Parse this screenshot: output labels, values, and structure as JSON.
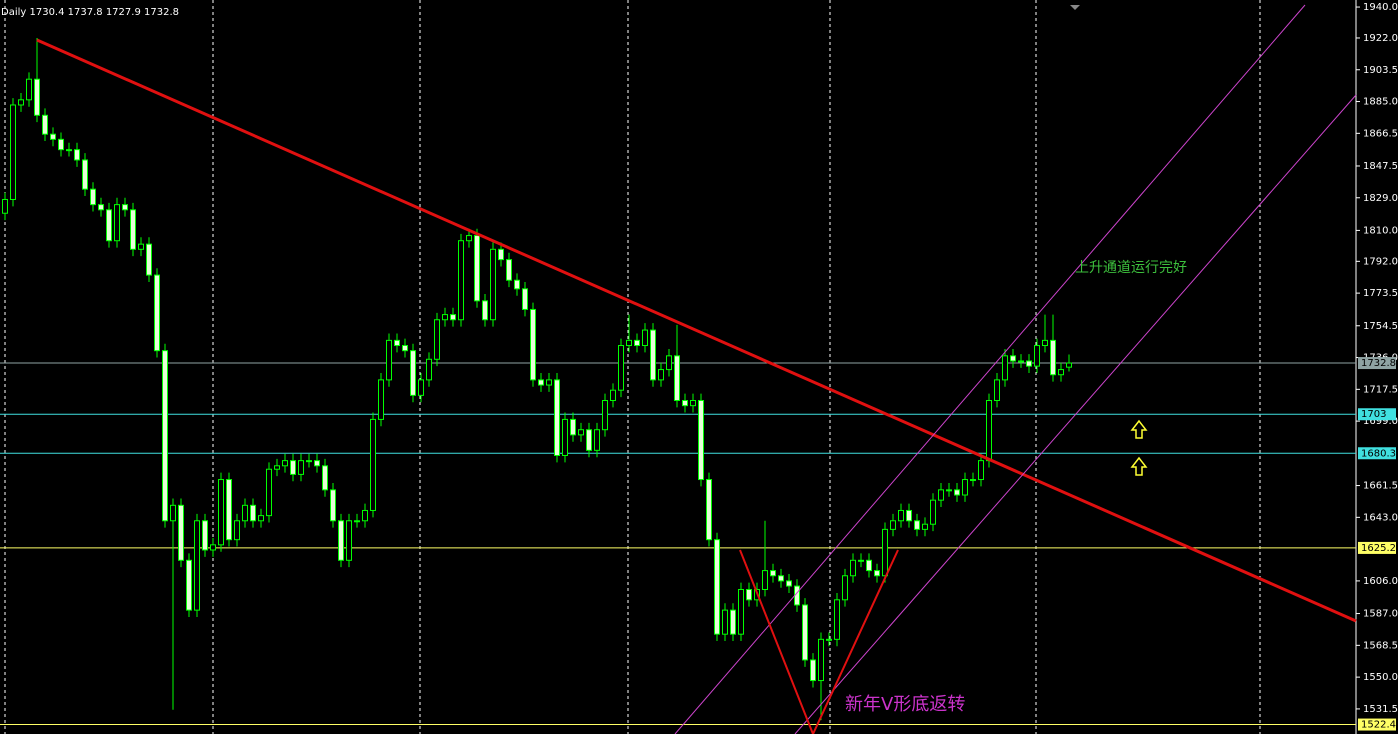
{
  "chart_data": {
    "type": "candlestick",
    "header": "Daily  1730.4 1737.8 1727.9 1732.8",
    "annotations": [
      "上升通道运行完好",
      "新年V形底返转"
    ],
    "up_color": "#000000",
    "down_color": "#e6ffd8",
    "wick_color": "#00ff00",
    "ylim": [
      1516.9,
      1944.1
    ],
    "yticks": [
      {
        "value": 1940,
        "label": "1940.0"
      },
      {
        "value": 1922,
        "label": "1922.0"
      },
      {
        "value": 1903.5,
        "label": "1903.5"
      },
      {
        "value": 1885,
        "label": "1885.0"
      },
      {
        "value": 1866.5,
        "label": "1866.5"
      },
      {
        "value": 1847.5,
        "label": "1847.5"
      },
      {
        "value": 1829,
        "label": "1829.0"
      },
      {
        "value": 1810,
        "label": "1810.0"
      },
      {
        "value": 1792,
        "label": "1792.0"
      },
      {
        "value": 1773.5,
        "label": "1773.5"
      },
      {
        "value": 1754.5,
        "label": "1754.5"
      },
      {
        "value": 1736,
        "label": "1736.0"
      },
      {
        "value": 1717.5,
        "label": "1717.5"
      },
      {
        "value": 1699,
        "label": "1699.0"
      },
      {
        "value": 1661.5,
        "label": "1661.5"
      },
      {
        "value": 1643,
        "label": "1643.0"
      },
      {
        "value": 1606,
        "label": "1606.0"
      },
      {
        "value": 1587,
        "label": "1587.0"
      },
      {
        "value": 1568.5,
        "label": "1568.5"
      },
      {
        "value": 1550,
        "label": "1550.0"
      },
      {
        "value": 1531.5,
        "label": "1531.5"
      }
    ],
    "levels": [
      {
        "value": 1732.8,
        "color": "#8fa3a3"
      },
      {
        "value": 1703,
        "color": "#40e0e0"
      },
      {
        "value": 1680.3,
        "color": "#40e0e0"
      },
      {
        "value": 1625.2,
        "color": "#ffff66"
      },
      {
        "value": 1522.4,
        "color": "#ffff66"
      }
    ],
    "open": [
      1820,
      1828,
      1883,
      1886,
      1898,
      1877,
      1866,
      1863,
      1857,
      1857,
      1851,
      1834,
      1825,
      1822,
      1804,
      1825,
      1822,
      1799,
      1802,
      1784,
      1740,
      1641,
      1650,
      1618,
      1589,
      1641,
      1624,
      1627,
      1665,
      1630,
      1641,
      1650,
      1641,
      1644,
      1671,
      1673,
      1676,
      1668,
      1676,
      1676,
      1673,
      1659,
      1641,
      1618,
      1641,
      1641,
      1647,
      1700,
      1723,
      1746,
      1743,
      1740,
      1714,
      1723,
      1735,
      1758,
      1761,
      1758,
      1804,
      1807,
      1769,
      1758,
      1799,
      1793,
      1781,
      1776,
      1764,
      1723,
      1720,
      1723,
      1679,
      1700,
      1691,
      1694,
      1682,
      1694,
      1711,
      1717,
      1743,
      1746,
      1743,
      1752,
      1723,
      1729,
      1737,
      1711,
      1708,
      1711,
      1665,
      1630,
      1575,
      1589,
      1575,
      1601,
      1595,
      1601,
      1612,
      1609,
      1606,
      1603,
      1592,
      1560,
      1548,
      1572,
      1572,
      1595,
      1609,
      1618,
      1618,
      1612,
      1609,
      1636,
      1641,
      1647,
      1641,
      1636,
      1639,
      1653,
      1659,
      1659,
      1656,
      1665,
      1665,
      1676,
      1711,
      1723,
      1737,
      1734,
      1734,
      1731,
      1743,
      1746,
      1726,
      1730.4
    ],
    "high": [
      1832,
      1887,
      1890,
      1902,
      1922,
      1881,
      1870,
      1867,
      1861,
      1861,
      1855,
      1838,
      1829,
      1826,
      1829,
      1829,
      1826,
      1806,
      1806,
      1788,
      1744,
      1654,
      1654,
      1622,
      1645,
      1645,
      1631,
      1669,
      1669,
      1645,
      1654,
      1654,
      1648,
      1675,
      1677,
      1680,
      1680,
      1680,
      1680,
      1680,
      1677,
      1663,
      1645,
      1645,
      1645,
      1651,
      1704,
      1727,
      1750,
      1750,
      1747,
      1744,
      1727,
      1739,
      1762,
      1765,
      1765,
      1808,
      1811,
      1811,
      1773,
      1803,
      1803,
      1797,
      1785,
      1780,
      1768,
      1727,
      1727,
      1727,
      1704,
      1704,
      1698,
      1698,
      1698,
      1715,
      1721,
      1747,
      1761,
      1750,
      1756,
      1756,
      1733,
      1741,
      1755,
      1715,
      1715,
      1715,
      1669,
      1634,
      1593,
      1593,
      1605,
      1605,
      1605,
      1641,
      1616,
      1613,
      1610,
      1607,
      1596,
      1564,
      1576,
      1576,
      1599,
      1613,
      1622,
      1622,
      1622,
      1616,
      1640,
      1645,
      1651,
      1651,
      1645,
      1643,
      1657,
      1663,
      1663,
      1663,
      1669,
      1669,
      1680,
      1715,
      1727,
      1741,
      1741,
      1738,
      1738,
      1747,
      1761,
      1761,
      1733,
      1737.8
    ],
    "low": [
      1816,
      1824,
      1879,
      1882,
      1873,
      1862,
      1859,
      1853,
      1853,
      1847,
      1830,
      1821,
      1818,
      1800,
      1800,
      1818,
      1795,
      1795,
      1780,
      1736,
      1637,
      1531,
      1614,
      1585,
      1585,
      1620,
      1620,
      1623,
      1626,
      1626,
      1637,
      1637,
      1637,
      1640,
      1667,
      1669,
      1664,
      1664,
      1672,
      1669,
      1655,
      1637,
      1614,
      1614,
      1637,
      1637,
      1643,
      1696,
      1719,
      1739,
      1736,
      1710,
      1710,
      1719,
      1731,
      1754,
      1754,
      1754,
      1800,
      1765,
      1754,
      1754,
      1789,
      1777,
      1772,
      1760,
      1719,
      1716,
      1716,
      1675,
      1675,
      1687,
      1687,
      1678,
      1678,
      1690,
      1707,
      1713,
      1739,
      1739,
      1739,
      1719,
      1719,
      1725,
      1707,
      1704,
      1704,
      1661,
      1626,
      1571,
      1571,
      1571,
      1571,
      1591,
      1591,
      1597,
      1605,
      1602,
      1599,
      1588,
      1556,
      1544,
      1525,
      1568,
      1568,
      1591,
      1605,
      1614,
      1608,
      1605,
      1605,
      1632,
      1637,
      1637,
      1632,
      1632,
      1635,
      1649,
      1655,
      1652,
      1652,
      1661,
      1661,
      1672,
      1707,
      1719,
      1730,
      1730,
      1727,
      1727,
      1739,
      1722,
      1722,
      1727.9
    ],
    "close": [
      1828,
      1883,
      1886,
      1898,
      1877,
      1866,
      1863,
      1857,
      1857,
      1851,
      1834,
      1825,
      1822,
      1804,
      1825,
      1822,
      1799,
      1802,
      1784,
      1740,
      1641,
      1650,
      1618,
      1589,
      1641,
      1624,
      1627,
      1665,
      1630,
      1641,
      1650,
      1641,
      1644,
      1671,
      1673,
      1676,
      1668,
      1676,
      1676,
      1673,
      1659,
      1641,
      1618,
      1641,
      1641,
      1647,
      1700,
      1723,
      1746,
      1743,
      1740,
      1714,
      1723,
      1735,
      1758,
      1761,
      1758,
      1804,
      1807,
      1769,
      1758,
      1799,
      1793,
      1781,
      1776,
      1764,
      1723,
      1720,
      1723,
      1679,
      1700,
      1691,
      1694,
      1682,
      1694,
      1711,
      1717,
      1743,
      1746,
      1743,
      1752,
      1723,
      1729,
      1737,
      1711,
      1708,
      1711,
      1665,
      1630,
      1575,
      1589,
      1575,
      1601,
      1595,
      1601,
      1612,
      1609,
      1606,
      1603,
      1592,
      1560,
      1548,
      1572,
      1572,
      1595,
      1609,
      1618,
      1618,
      1612,
      1609,
      1636,
      1641,
      1647,
      1641,
      1636,
      1639,
      1653,
      1659,
      1659,
      1656,
      1665,
      1665,
      1676,
      1711,
      1723,
      1737,
      1734,
      1734,
      1731,
      1743,
      1746,
      1726,
      1729,
      1732.8
    ]
  }
}
